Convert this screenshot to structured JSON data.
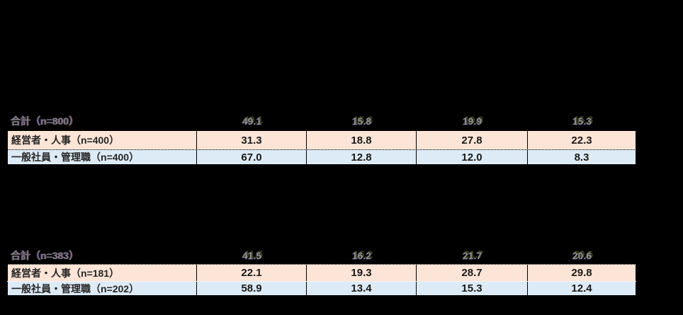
{
  "colors": {
    "page_bg": "#000000",
    "row_peach": "#fce4d6",
    "row_blue": "#ddebf7",
    "ghost_text": "#8f8f8f",
    "data_text": "#1a1a1a"
  },
  "table1": {
    "total": {
      "label": "合計（n=800）",
      "values": [
        "49.1",
        "15.8",
        "19.9",
        "15.3"
      ]
    },
    "row1": {
      "label": "経営者・人事（n=400）",
      "values": [
        "31.3",
        "18.8",
        "27.8",
        "22.3"
      ]
    },
    "row2": {
      "label": "一般社員・管理職（n=400）",
      "values": [
        "67.0",
        "12.8",
        "12.0",
        "8.3"
      ]
    }
  },
  "table2": {
    "total": {
      "label": "合計（n=383）",
      "values": [
        "41.5",
        "16.2",
        "21.7",
        "20.6"
      ]
    },
    "row1": {
      "label": "経営者・人事（n=181）",
      "values": [
        "22.1",
        "19.3",
        "28.7",
        "29.8"
      ]
    },
    "row2": {
      "label": "一般社員・管理職（n=202）",
      "values": [
        "58.9",
        "13.4",
        "15.3",
        "12.4"
      ]
    }
  },
  "chart_data": [
    {
      "type": "table",
      "title": "",
      "columns": [
        "col1",
        "col2",
        "col3",
        "col4"
      ],
      "rows": [
        {
          "label": "合計（n=800）",
          "values": [
            49.1,
            15.8,
            19.9,
            15.3
          ]
        },
        {
          "label": "経営者・人事（n=400）",
          "values": [
            31.3,
            18.8,
            27.8,
            22.3
          ]
        },
        {
          "label": "一般社員・管理職（n=400）",
          "values": [
            67.0,
            12.8,
            12.0,
            8.3
          ]
        }
      ],
      "layout_hints": {
        "unit": "percent",
        "row_fills": [
          "none",
          "#fce4d6",
          "#ddebf7"
        ]
      }
    },
    {
      "type": "table",
      "title": "",
      "columns": [
        "col1",
        "col2",
        "col3",
        "col4"
      ],
      "rows": [
        {
          "label": "合計（n=383）",
          "values": [
            41.5,
            16.2,
            21.7,
            20.6
          ]
        },
        {
          "label": "経営者・人事（n=181）",
          "values": [
            22.1,
            19.3,
            28.7,
            29.8
          ]
        },
        {
          "label": "一般社員・管理職（n=202）",
          "values": [
            58.9,
            13.4,
            15.3,
            12.4
          ]
        }
      ],
      "layout_hints": {
        "unit": "percent",
        "row_fills": [
          "none",
          "#fce4d6",
          "#ddebf7"
        ]
      }
    }
  ]
}
